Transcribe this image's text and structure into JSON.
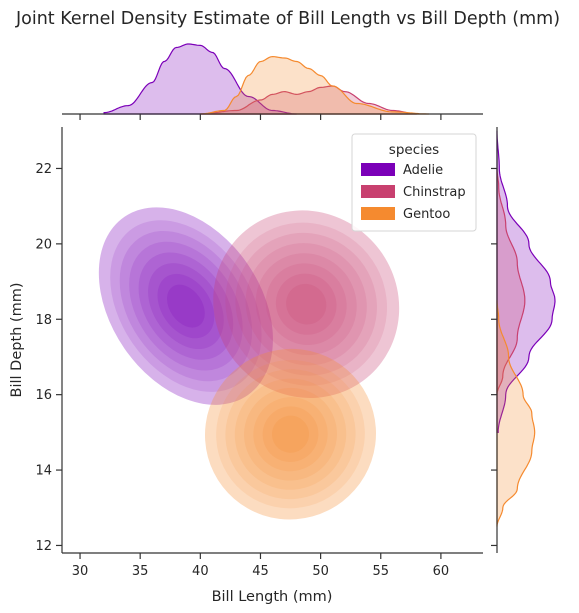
{
  "chart_data": {
    "type": "kde-joint",
    "title": "Joint Kernel Density Estimate of Bill Length vs Bill Depth (mm)",
    "xlabel": "Bill Length (mm)",
    "ylabel": "Bill Depth (mm)",
    "xlim": [
      28.5,
      63.5
    ],
    "ylim": [
      11.8,
      23.1
    ],
    "xticks": [
      30,
      35,
      40,
      45,
      50,
      55,
      60
    ],
    "yticks": [
      12,
      14,
      16,
      18,
      20,
      22
    ],
    "grid": false,
    "legend": {
      "title": "species",
      "placement": "top-right",
      "entries": [
        "Adelie",
        "Chinstrap",
        "Gentoo"
      ]
    },
    "colors": {
      "Adelie": "#7b00b8",
      "Chinstrap": "#c8406f",
      "Gentoo": "#f58a2f"
    },
    "series": [
      {
        "name": "Adelie",
        "center": [
          38.8,
          18.35
        ],
        "spread": [
          2.7,
          1.25
        ],
        "correlation": 0.4,
        "x_marginal": [
          [
            32,
            0.02
          ],
          [
            34,
            0.12
          ],
          [
            36,
            0.45
          ],
          [
            37,
            0.75
          ],
          [
            38,
            0.95
          ],
          [
            39,
            1.0
          ],
          [
            40,
            0.98
          ],
          [
            41,
            0.88
          ],
          [
            42,
            0.65
          ],
          [
            44,
            0.25
          ],
          [
            46,
            0.05
          ],
          [
            48,
            0.0
          ]
        ],
        "y_marginal": [
          [
            15,
            0.02
          ],
          [
            16,
            0.15
          ],
          [
            17,
            0.55
          ],
          [
            18,
            0.95
          ],
          [
            18.5,
            1.0
          ],
          [
            19,
            0.92
          ],
          [
            20,
            0.55
          ],
          [
            21,
            0.18
          ],
          [
            22,
            0.04
          ],
          [
            23,
            0.0
          ]
        ]
      },
      {
        "name": "Chinstrap",
        "center": [
          48.8,
          18.4
        ],
        "spread": [
          3.3,
          1.1
        ],
        "correlation": 0.65,
        "x_marginal": [
          [
            40,
            0.0
          ],
          [
            43,
            0.05
          ],
          [
            45,
            0.2
          ],
          [
            46,
            0.28
          ],
          [
            47,
            0.32
          ],
          [
            48,
            0.28
          ],
          [
            49,
            0.32
          ],
          [
            50,
            0.38
          ],
          [
            51,
            0.4
          ],
          [
            52,
            0.32
          ],
          [
            54,
            0.15
          ],
          [
            56,
            0.05
          ],
          [
            58,
            0.0
          ]
        ],
        "y_marginal": [
          [
            16,
            0.0
          ],
          [
            16.5,
            0.1
          ],
          [
            17.5,
            0.35
          ],
          [
            18.5,
            0.48
          ],
          [
            19.5,
            0.35
          ],
          [
            20.5,
            0.15
          ],
          [
            21.5,
            0.03
          ],
          [
            22,
            0.0
          ]
        ]
      },
      {
        "name": "Gentoo",
        "center": [
          47.5,
          14.95
        ],
        "spread": [
          3.1,
          0.98
        ],
        "correlation": 0.65,
        "x_marginal": [
          [
            40,
            0.0
          ],
          [
            42,
            0.05
          ],
          [
            43,
            0.25
          ],
          [
            44,
            0.55
          ],
          [
            45,
            0.75
          ],
          [
            46,
            0.82
          ],
          [
            47,
            0.8
          ],
          [
            48,
            0.75
          ],
          [
            49,
            0.65
          ],
          [
            50,
            0.55
          ],
          [
            51,
            0.4
          ],
          [
            53,
            0.15
          ],
          [
            56,
            0.03
          ],
          [
            59,
            0.0
          ]
        ],
        "y_marginal": [
          [
            12.5,
            0.0
          ],
          [
            13,
            0.1
          ],
          [
            13.5,
            0.35
          ],
          [
            14.5,
            0.6
          ],
          [
            15,
            0.65
          ],
          [
            15.5,
            0.6
          ],
          [
            16,
            0.45
          ],
          [
            17,
            0.2
          ],
          [
            18,
            0.03
          ],
          [
            18.5,
            0.0
          ]
        ]
      }
    ]
  }
}
